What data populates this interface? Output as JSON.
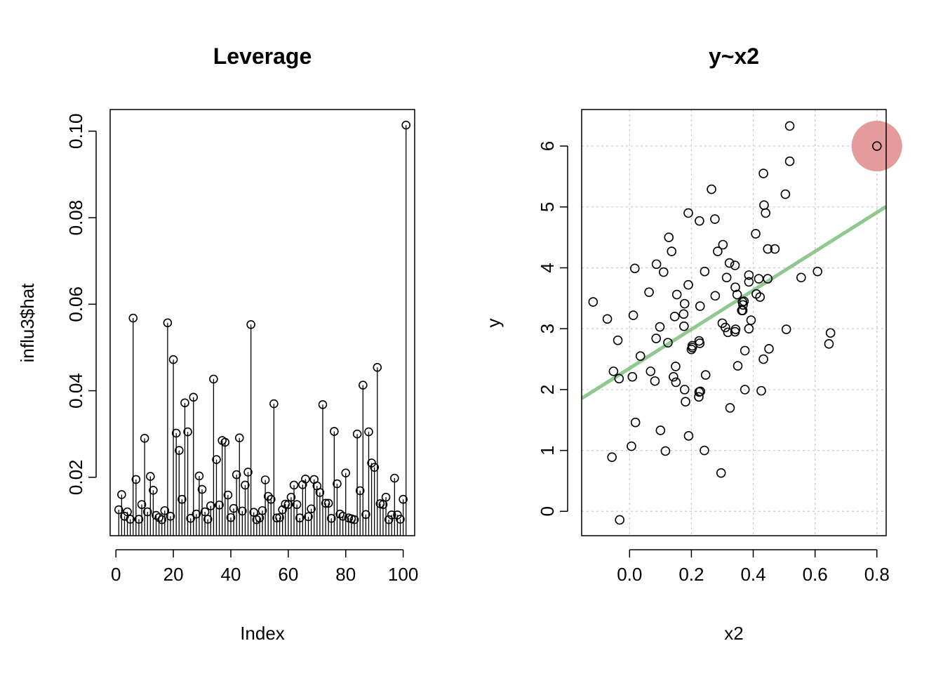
{
  "chart_data": [
    {
      "type": "scatter",
      "subtype": "stem",
      "title": "Leverage",
      "xlabel": "Index",
      "ylabel": "influ3$hat",
      "xlim": [
        -2,
        104
      ],
      "ylim": [
        0.0065,
        0.105
      ],
      "x_ticks": [
        0,
        20,
        40,
        60,
        80,
        100
      ],
      "y_ticks": [
        0.02,
        0.04,
        0.06,
        0.08,
        0.1
      ],
      "x_tick_labels": [
        "0",
        "20",
        "40",
        "60",
        "80",
        "100"
      ],
      "y_tick_labels": [
        "0.02",
        "0.04",
        "0.06",
        "0.08",
        "0.10"
      ],
      "grid": false,
      "x": [
        1,
        2,
        3,
        4,
        5,
        6,
        7,
        8,
        9,
        10,
        11,
        12,
        13,
        14,
        15,
        16,
        17,
        18,
        19,
        20,
        21,
        22,
        23,
        24,
        25,
        26,
        27,
        28,
        29,
        30,
        31,
        32,
        33,
        34,
        35,
        36,
        37,
        38,
        39,
        40,
        41,
        42,
        43,
        44,
        45,
        46,
        47,
        48,
        49,
        50,
        51,
        52,
        53,
        54,
        55,
        56,
        57,
        58,
        59,
        60,
        61,
        62,
        63,
        64,
        65,
        66,
        67,
        68,
        69,
        70,
        71,
        72,
        73,
        74,
        75,
        76,
        77,
        78,
        79,
        80,
        81,
        82,
        83,
        84,
        85,
        86,
        87,
        88,
        89,
        90,
        91,
        92,
        93,
        94,
        95,
        96,
        97,
        98,
        99,
        100,
        101
      ],
      "values": [
        0.0125,
        0.016,
        0.011,
        0.012,
        0.0103,
        0.0568,
        0.0195,
        0.0103,
        0.0137,
        0.029,
        0.012,
        0.0202,
        0.017,
        0.0112,
        0.0107,
        0.0102,
        0.0123,
        0.0557,
        0.011,
        0.0472,
        0.0302,
        0.0262,
        0.0149,
        0.0372,
        0.0305,
        0.0105,
        0.0385,
        0.0115,
        0.0203,
        0.0172,
        0.012,
        0.0103,
        0.0134,
        0.0427,
        0.0241,
        0.0136,
        0.0285,
        0.0281,
        0.0159,
        0.0107,
        0.0128,
        0.0206,
        0.0291,
        0.0122,
        0.0182,
        0.0212,
        0.0553,
        0.0119,
        0.0102,
        0.0106,
        0.0123,
        0.0194,
        0.0156,
        0.0149,
        0.037,
        0.0106,
        0.0107,
        0.0125,
        0.0138,
        0.0137,
        0.0154,
        0.0182,
        0.0137,
        0.0106,
        0.0183,
        0.0196,
        0.0109,
        0.0127,
        0.0195,
        0.018,
        0.0165,
        0.0368,
        0.014,
        0.014,
        0.0105,
        0.0306,
        0.0185,
        0.0115,
        0.011,
        0.021,
        0.0106,
        0.0104,
        0.0102,
        0.03,
        0.0169,
        0.0413,
        0.0114,
        0.0305,
        0.0233,
        0.0223,
        0.0454,
        0.0139,
        0.0137,
        0.0154,
        0.0102,
        0.0113,
        0.0198,
        0.0113,
        0.0103,
        0.0149,
        0.1014
      ]
    },
    {
      "type": "scatter",
      "title": "y~x2",
      "xlabel": "x2",
      "ylabel": "y",
      "xlim": [
        -0.155,
        0.83
      ],
      "ylim": [
        -0.4,
        6.6
      ],
      "x_ticks": [
        0.0,
        0.2,
        0.4,
        0.6,
        0.8
      ],
      "y_ticks": [
        0,
        1,
        2,
        3,
        4,
        5,
        6
      ],
      "x_tick_labels": [
        "0.0",
        "0.2",
        "0.4",
        "0.6",
        "0.8"
      ],
      "y_tick_labels": [
        "0",
        "1",
        "2",
        "3",
        "4",
        "5",
        "6"
      ],
      "grid": true,
      "point_color": "#000000",
      "fit_line": {
        "intercept": 2.35,
        "slope": 3.2,
        "color": "#90c890"
      },
      "highlight": {
        "x": 0.8,
        "y": 6.0,
        "color": "#e09090"
      },
      "points": [
        [
          0.518,
          6.33
        ],
        [
          0.8,
          6.0
        ],
        [
          0.433,
          5.55
        ],
        [
          0.518,
          5.75
        ],
        [
          0.265,
          5.29
        ],
        [
          0.504,
          5.21
        ],
        [
          0.435,
          5.03
        ],
        [
          0.44,
          4.9
        ],
        [
          0.19,
          4.9
        ],
        [
          0.226,
          4.77
        ],
        [
          0.276,
          4.8
        ],
        [
          0.408,
          4.56
        ],
        [
          0.127,
          4.5
        ],
        [
          0.302,
          4.38
        ],
        [
          0.285,
          4.27
        ],
        [
          0.136,
          4.27
        ],
        [
          0.447,
          4.31
        ],
        [
          0.47,
          4.31
        ],
        [
          0.087,
          4.06
        ],
        [
          0.323,
          4.08
        ],
        [
          0.341,
          4.04
        ],
        [
          0.017,
          3.99
        ],
        [
          0.11,
          3.93
        ],
        [
          0.243,
          3.94
        ],
        [
          0.386,
          3.88
        ],
        [
          0.418,
          3.82
        ],
        [
          0.447,
          3.82
        ],
        [
          0.314,
          3.84
        ],
        [
          0.386,
          3.77
        ],
        [
          0.555,
          3.84
        ],
        [
          0.608,
          3.94
        ],
        [
          0.19,
          3.72
        ],
        [
          0.342,
          3.68
        ],
        [
          0.063,
          3.6
        ],
        [
          0.153,
          3.56
        ],
        [
          0.348,
          3.56
        ],
        [
          0.41,
          3.57
        ],
        [
          0.277,
          3.54
        ],
        [
          0.422,
          3.52
        ],
        [
          0.37,
          3.45
        ],
        [
          0.365,
          3.44
        ],
        [
          0.178,
          3.41
        ],
        [
          0.367,
          3.39
        ],
        [
          0.363,
          3.3
        ],
        [
          0.228,
          3.37
        ],
        [
          0.366,
          3.3
        ],
        [
          -0.118,
          3.44
        ],
        [
          0.175,
          3.24
        ],
        [
          0.012,
          3.22
        ],
        [
          0.146,
          3.2
        ],
        [
          0.393,
          3.14
        ],
        [
          -0.072,
          3.16
        ],
        [
          0.3,
          3.09
        ],
        [
          0.31,
          3.02
        ],
        [
          0.098,
          3.03
        ],
        [
          0.176,
          3.04
        ],
        [
          0.343,
          2.99
        ],
        [
          0.318,
          2.94
        ],
        [
          0.341,
          2.95
        ],
        [
          0.386,
          3.0
        ],
        [
          0.507,
          2.99
        ],
        [
          0.65,
          2.93
        ],
        [
          -0.038,
          2.81
        ],
        [
          0.086,
          2.84
        ],
        [
          0.124,
          2.77
        ],
        [
          0.225,
          2.8
        ],
        [
          0.227,
          2.76
        ],
        [
          0.203,
          2.72
        ],
        [
          0.2,
          2.66
        ],
        [
          0.203,
          2.69
        ],
        [
          0.373,
          2.64
        ],
        [
          0.451,
          2.67
        ],
        [
          0.645,
          2.75
        ],
        [
          0.035,
          2.55
        ],
        [
          0.433,
          2.5
        ],
        [
          0.149,
          2.38
        ],
        [
          0.35,
          2.39
        ],
        [
          -0.052,
          2.3
        ],
        [
          0.068,
          2.3
        ],
        [
          0.246,
          2.24
        ],
        [
          0.142,
          2.21
        ],
        [
          0.009,
          2.21
        ],
        [
          -0.034,
          2.18
        ],
        [
          0.082,
          2.14
        ],
        [
          0.15,
          2.12
        ],
        [
          0.178,
          2.0
        ],
        [
          0.373,
          2.0
        ],
        [
          0.426,
          1.98
        ],
        [
          0.229,
          1.97
        ],
        [
          0.224,
          1.88
        ],
        [
          0.181,
          1.8
        ],
        [
          0.225,
          1.96
        ],
        [
          0.325,
          1.7
        ],
        [
          0.019,
          1.46
        ],
        [
          0.1,
          1.33
        ],
        [
          0.191,
          1.24
        ],
        [
          0.006,
          1.07
        ],
        [
          0.116,
          0.99
        ],
        [
          0.242,
          1.0
        ],
        [
          -0.057,
          0.89
        ],
        [
          0.296,
          0.63
        ],
        [
          -0.032,
          -0.14
        ]
      ]
    }
  ]
}
